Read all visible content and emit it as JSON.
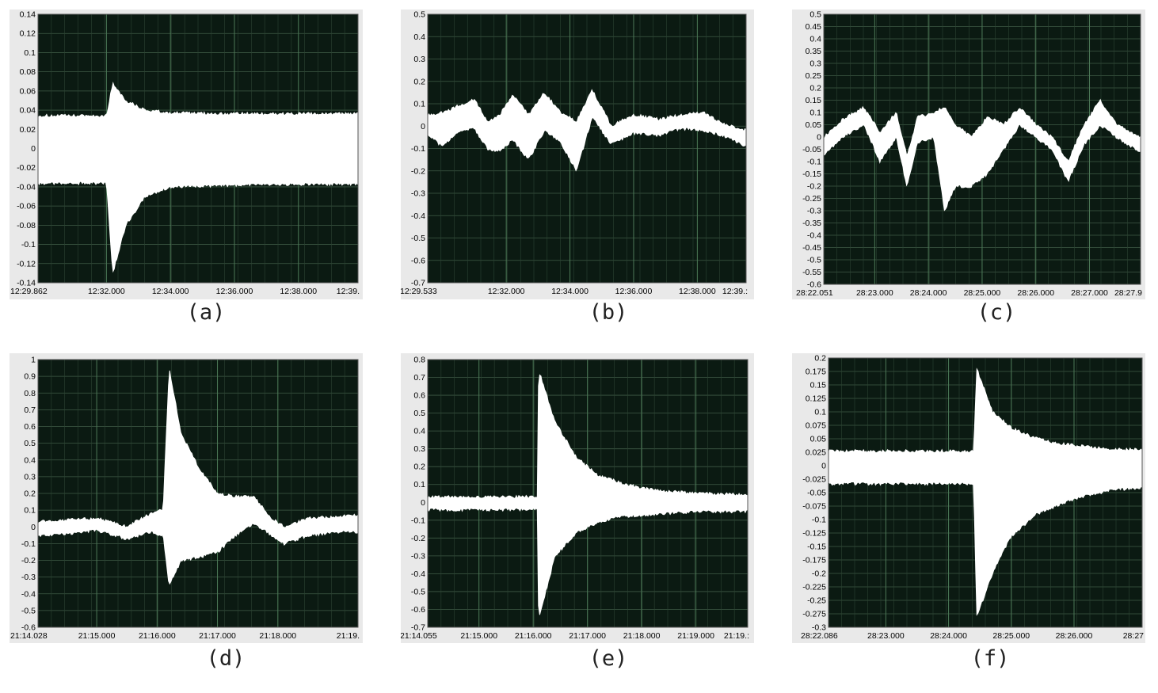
{
  "chart_data": [
    {
      "type": "area",
      "caption": "(a)",
      "ylim": [
        -0.14,
        0.14
      ],
      "yticks": [
        0.14,
        0.12,
        0.1,
        0.08,
        0.06,
        0.04,
        0.02,
        0,
        -0.02,
        -0.04,
        -0.06,
        -0.08,
        -0.1,
        -0.12,
        -0.14
      ],
      "xlim": [
        "12:29.862",
        "12:39.862"
      ],
      "xtick_labels": [
        "12:29.862",
        "12:32.000",
        "12:34.000",
        "12:36.000",
        "12:38.000",
        "12:39."
      ],
      "grid": true,
      "envelope": {
        "x": [
          "12:29.862",
          "12:32.000",
          "12:32.200",
          "12:32.600",
          "12:33.200",
          "12:34.000",
          "12:36.000",
          "12:38.000",
          "12:39.862"
        ],
        "upper": [
          0.034,
          0.034,
          0.068,
          0.05,
          0.04,
          0.037,
          0.036,
          0.036,
          0.036
        ],
        "lower": [
          -0.036,
          -0.036,
          -0.13,
          -0.08,
          -0.05,
          -0.04,
          -0.038,
          -0.037,
          -0.037
        ]
      }
    },
    {
      "type": "area",
      "caption": "(b)",
      "ylim": [
        -0.7,
        0.5
      ],
      "yticks": [
        0.5,
        0.4,
        0.3,
        0.2,
        0.1,
        0,
        -0.1,
        -0.2,
        -0.3,
        -0.4,
        -0.5,
        -0.6,
        -0.7
      ],
      "xlim": [
        "12:29.533",
        "12:39.533"
      ],
      "xtick_labels": [
        "12:29.533",
        "12:32.000",
        "12:34.000",
        "12:36.000",
        "12:38.000",
        "12:39.:"
      ],
      "grid": true,
      "envelope": {
        "x": [
          "12:29.533",
          "12:30.000",
          "12:30.500",
          "12:31.000",
          "12:31.400",
          "12:31.800",
          "12:32.200",
          "12:32.700",
          "12:33.200",
          "12:33.700",
          "12:34.200",
          "12:34.700",
          "12:35.300",
          "12:36.000",
          "12:36.800",
          "12:37.500",
          "12:38.200",
          "12:38.800",
          "12:39.533"
        ],
        "upper": [
          0.05,
          0.06,
          0.09,
          0.12,
          0.02,
          0.05,
          0.14,
          0.05,
          0.15,
          0.06,
          0.02,
          0.16,
          0.0,
          0.05,
          0.03,
          0.05,
          0.06,
          0.01,
          -0.02
        ],
        "lower": [
          -0.04,
          -0.09,
          -0.02,
          -0.01,
          -0.1,
          -0.11,
          -0.06,
          -0.15,
          -0.02,
          -0.07,
          -0.2,
          0.04,
          -0.08,
          -0.03,
          -0.04,
          -0.01,
          -0.02,
          -0.04,
          -0.09
        ]
      }
    },
    {
      "type": "area",
      "caption": "(c)",
      "ylim": [
        -0.6,
        0.5
      ],
      "yticks": [
        0.5,
        0.45,
        0.4,
        0.35,
        0.3,
        0.25,
        0.2,
        0.15,
        0.1,
        0.05,
        0,
        -0.05,
        -0.1,
        -0.15,
        -0.2,
        -0.25,
        -0.3,
        -0.35,
        -0.4,
        -0.45,
        -0.5,
        -0.55,
        -0.6
      ],
      "xlim": [
        "28:22.051",
        "28:27.951"
      ],
      "xtick_labels": [
        "28:22.051",
        "28:23.000",
        "28:24.000",
        "28:25.000",
        "28:26.000",
        "28:27.000",
        "28:27.9"
      ],
      "grid": true,
      "envelope": {
        "x": [
          "28:22.051",
          "28:22.400",
          "28:22.800",
          "28:23.100",
          "28:23.400",
          "28:23.600",
          "28:23.800",
          "28:24.100",
          "28:24.300",
          "28:24.500",
          "28:24.800",
          "28:25.100",
          "28:25.400",
          "28:25.700",
          "28:26.000",
          "28:26.300",
          "28:26.600",
          "28:26.900",
          "28:27.200",
          "28:27.500",
          "28:27.951"
        ],
        "upper": [
          0.0,
          0.07,
          0.12,
          0.02,
          0.1,
          -0.08,
          0.08,
          0.1,
          0.12,
          0.05,
          0.0,
          0.08,
          0.05,
          0.12,
          0.05,
          0.0,
          -0.1,
          0.05,
          0.15,
          0.05,
          0.0
        ],
        "lower": [
          -0.07,
          0.0,
          0.05,
          -0.1,
          0.0,
          -0.2,
          -0.02,
          0.0,
          -0.3,
          -0.2,
          -0.2,
          -0.15,
          -0.05,
          0.05,
          0.0,
          -0.05,
          -0.18,
          -0.03,
          0.05,
          0.0,
          -0.06
        ]
      }
    },
    {
      "type": "area",
      "caption": "(d)",
      "ylim": [
        -0.6,
        1
      ],
      "yticks": [
        1,
        0.9,
        0.8,
        0.7,
        0.6,
        0.5,
        0.4,
        0.3,
        0.2,
        0.1,
        0,
        -0.1,
        -0.2,
        -0.3,
        -0.4,
        -0.5,
        -0.6
      ],
      "xlim": [
        "21:14.028",
        "21:19.328"
      ],
      "xtick_labels": [
        "21:14.028",
        "21:15.000",
        "21:16.000",
        "21:17.000",
        "21:18.000",
        "21:19."
      ],
      "grid": true,
      "envelope": {
        "x": [
          "21:14.028",
          "21:14.500",
          "21:15.000",
          "21:15.500",
          "21:15.900",
          "21:16.100",
          "21:16.200",
          "21:16.400",
          "21:16.700",
          "21:17.000",
          "21:17.300",
          "21:17.600",
          "21:17.900",
          "21:18.100",
          "21:18.500",
          "21:19.000",
          "21:19.328"
        ],
        "upper": [
          0.03,
          0.04,
          0.05,
          0.0,
          0.08,
          0.1,
          0.95,
          0.55,
          0.35,
          0.2,
          0.18,
          0.18,
          0.05,
          0.0,
          0.05,
          0.06,
          0.07
        ],
        "lower": [
          -0.05,
          -0.04,
          -0.02,
          -0.07,
          -0.03,
          -0.05,
          -0.35,
          -0.2,
          -0.18,
          -0.15,
          -0.05,
          0.02,
          -0.05,
          -0.1,
          -0.05,
          -0.03,
          -0.03
        ]
      }
    },
    {
      "type": "area",
      "caption": "(e)",
      "ylim": [
        -0.7,
        0.8
      ],
      "yticks": [
        0.8,
        0.7,
        0.6,
        0.5,
        0.4,
        0.3,
        0.2,
        0.1,
        0,
        -0.1,
        -0.2,
        -0.3,
        -0.4,
        -0.5,
        -0.6,
        -0.7
      ],
      "xlim": [
        "21:14.055",
        "21:19.955"
      ],
      "xtick_labels": [
        "21:14.055",
        "21:15.000",
        "21:16.000",
        "21:17.000",
        "21:18.000",
        "21:19.000",
        "21:19.:"
      ],
      "grid": true,
      "envelope": {
        "x": [
          "21:14.055",
          "21:15.000",
          "21:16.000",
          "21:16.080",
          "21:16.100",
          "21:16.400",
          "21:16.800",
          "21:17.200",
          "21:17.600",
          "21:18.000",
          "21:18.500",
          "21:19.000",
          "21:19.955"
        ],
        "upper": [
          0.03,
          0.03,
          0.03,
          0.03,
          0.74,
          0.45,
          0.25,
          0.15,
          0.11,
          0.08,
          0.06,
          0.05,
          0.04
        ],
        "lower": [
          -0.04,
          -0.04,
          -0.04,
          -0.04,
          -0.66,
          -0.3,
          -0.17,
          -0.11,
          -0.08,
          -0.07,
          -0.06,
          -0.05,
          -0.05
        ]
      }
    },
    {
      "type": "area",
      "caption": "(f)",
      "ylim": [
        -0.3,
        0.2
      ],
      "yticks": [
        0.2,
        0.175,
        0.15,
        0.125,
        0.1,
        0.075,
        0.05,
        0.025,
        0,
        -0.025,
        -0.05,
        -0.075,
        -0.1,
        -0.125,
        -0.15,
        -0.175,
        -0.2,
        -0.225,
        -0.25,
        -0.275,
        -0.3
      ],
      "xlim": [
        "28:22.086",
        "28:27.086"
      ],
      "xtick_labels": [
        "28:22.086",
        "28:23.000",
        "28:24.000",
        "28:25.000",
        "28:26.000",
        "28:27"
      ],
      "grid": true,
      "envelope": {
        "x": [
          "28:22.086",
          "28:23.000",
          "28:24.000",
          "28:24.400",
          "28:24.450",
          "28:24.700",
          "28:25.000",
          "28:25.400",
          "28:25.800",
          "28:26.200",
          "28:26.600",
          "28:27.086"
        ],
        "upper": [
          0.027,
          0.027,
          0.027,
          0.027,
          0.18,
          0.1,
          0.07,
          0.05,
          0.04,
          0.035,
          0.03,
          0.03
        ],
        "lower": [
          -0.033,
          -0.033,
          -0.033,
          -0.033,
          -0.28,
          -0.2,
          -0.13,
          -0.09,
          -0.07,
          -0.055,
          -0.045,
          -0.04
        ]
      }
    }
  ]
}
